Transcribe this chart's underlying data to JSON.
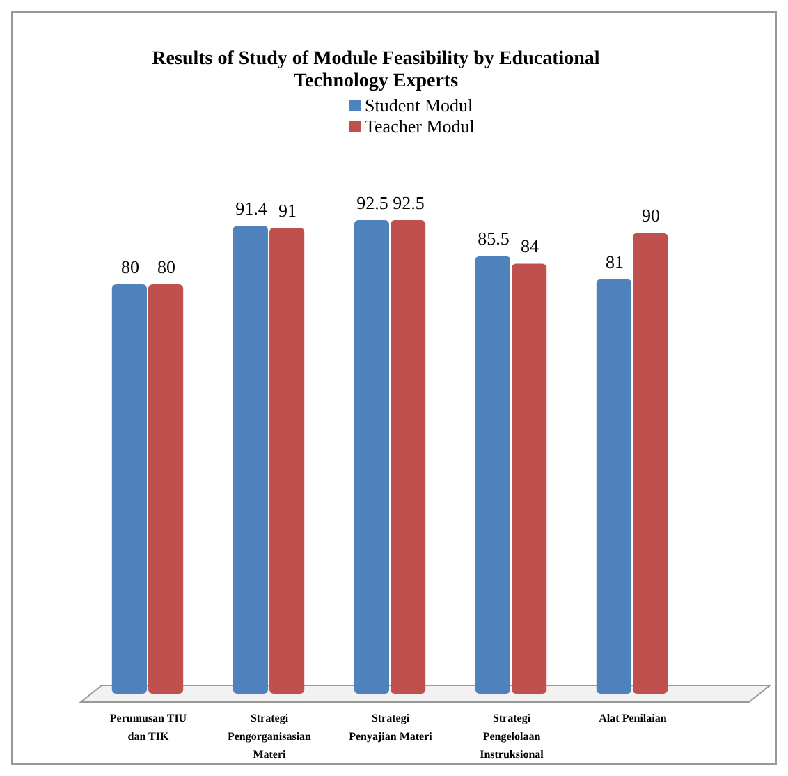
{
  "chart_data": {
    "type": "bar",
    "title": "Results of Study of Module Feasibility by Educational Technology Experts",
    "categories": [
      "Perumusan TIU dan TIK",
      "Strategi Pengorganisasian Materi",
      "Strategi Penyajian Materi",
      "Strategi Pengelolaan Instruksional",
      "Alat Penilaian"
    ],
    "series": [
      {
        "name": "Student Modul",
        "color": "#4f81bd",
        "values": [
          80,
          91.4,
          92.5,
          85.5,
          81
        ]
      },
      {
        "name": "Teacher Modul",
        "color": "#c0504d",
        "values": [
          80,
          91,
          92.5,
          84,
          90
        ]
      }
    ],
    "tick_labels": "x",
    "data_labels": true,
    "legend": "top"
  }
}
